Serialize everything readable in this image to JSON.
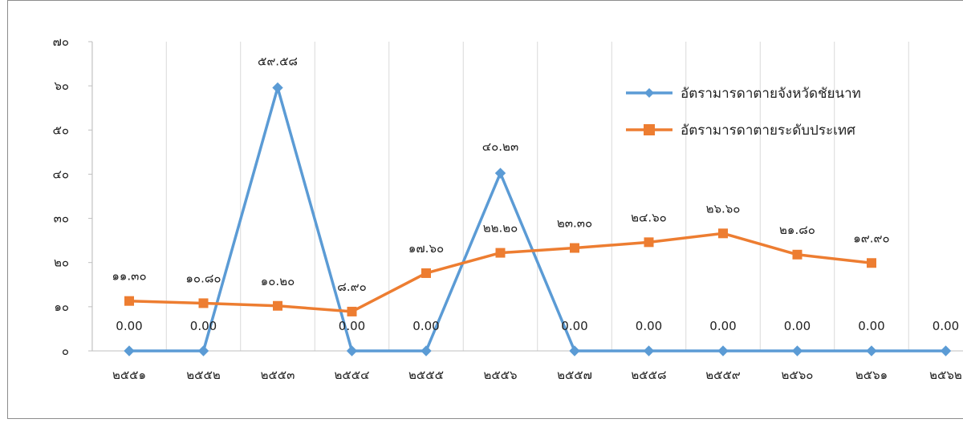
{
  "chart_data": {
    "type": "line",
    "title": "",
    "xlabel": "",
    "ylabel": "",
    "ylim": [
      0,
      70
    ],
    "y_ticks": [
      "๐",
      "๑๐",
      "๒๐",
      "๓๐",
      "๔๐",
      "๕๐",
      "๖๐",
      "๗๐"
    ],
    "y_tick_values": [
      0,
      10,
      20,
      30,
      40,
      50,
      60,
      70
    ],
    "categories": [
      "๒๕๕๑",
      "๒๕๕๒",
      "๒๕๕๓",
      "๒๕๕๔",
      "๒๕๕๕",
      "๒๕๕๖",
      "๒๕๕๗",
      "๒๕๕๘",
      "๒๕๕๙",
      "๒๕๖๐",
      "๒๕๖๑",
      "๒๕๖๒"
    ],
    "grid": "vertical",
    "legend_position": "top-right",
    "series": [
      {
        "name": "อัตรามารดาตายจังหวัดชัยนาท",
        "color": "#5B9BD5",
        "marker": "diamond",
        "values": [
          0,
          0,
          59.58,
          0,
          0,
          40.23,
          0,
          0,
          0,
          0,
          0,
          0
        ],
        "labels": [
          "0.00",
          "0.00",
          "๕๙.๕๘",
          "0.00",
          "0.00",
          "๔๐.๒๓",
          "0.00",
          "0.00",
          "0.00",
          "0.00",
          "0.00",
          "0.00"
        ]
      },
      {
        "name": "อัตรามารดาตายระดับประเทศ",
        "color": "#ED7D31",
        "marker": "square",
        "values": [
          11.3,
          10.8,
          10.2,
          8.9,
          17.6,
          22.2,
          23.3,
          24.6,
          26.6,
          21.8,
          19.9,
          null
        ],
        "labels": [
          "๑๑.๓๐",
          "๑๐.๘๐",
          "๑๐.๒๐",
          "๘.๙๐",
          "๑๗.๖๐",
          "๒๒.๒๐",
          "๒๓.๓๐",
          "๒๔.๖๐",
          "๒๖.๖๐",
          "๒๑.๘๐",
          "๑๙.๙๐",
          null
        ]
      }
    ]
  }
}
